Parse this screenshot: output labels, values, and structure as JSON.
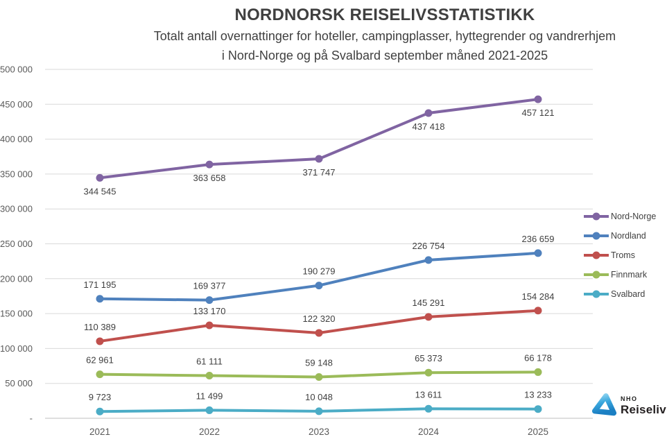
{
  "header": {
    "title": "NORDNORSK REISELIVSSTATISTIKK",
    "subtitle_line1": "Totalt antall overnattinger for hoteller, campingplasser, hyttegrender og vandrerhjem",
    "subtitle_line2": "i Nord-Norge og på Svalbard september måned 2021-2025"
  },
  "chart_data": {
    "type": "line",
    "title": "NORDNORSK REISELIVSSTATISTIKK",
    "xlabel": "",
    "ylabel": "",
    "categories": [
      "2021",
      "2022",
      "2023",
      "2024",
      "2025"
    ],
    "series": [
      {
        "name": "Nord-Norge",
        "color": "#8064A2",
        "values": [
          344545,
          363658,
          371747,
          437418,
          457121
        ],
        "labels": [
          "344 545",
          "363 658",
          "371 747",
          "437 418",
          "457 121"
        ],
        "label_position": "below"
      },
      {
        "name": "Nordland",
        "color": "#4F81BD",
        "values": [
          171195,
          169377,
          190279,
          226754,
          236659
        ],
        "labels": [
          "171 195",
          "169 377",
          "190 279",
          "226 754",
          "236 659"
        ],
        "label_position": "above"
      },
      {
        "name": "Troms",
        "color": "#C0504D",
        "values": [
          110389,
          133170,
          122320,
          145291,
          154284
        ],
        "labels": [
          "110 389",
          "133 170",
          "122 320",
          "145 291",
          "154 284"
        ],
        "label_position": "above"
      },
      {
        "name": "Finnmark",
        "color": "#9BBB59",
        "values": [
          62961,
          61111,
          59148,
          65373,
          66178
        ],
        "labels": [
          "62 961",
          "61 111",
          "59 148",
          "65 373",
          "66 178"
        ],
        "label_position": "above"
      },
      {
        "name": "Svalbard",
        "color": "#4BACC6",
        "values": [
          9723,
          11499,
          10048,
          13611,
          13233
        ],
        "labels": [
          "9 723",
          "11 499",
          "10 048",
          "13 611",
          "13 233"
        ],
        "label_position": "above"
      }
    ],
    "ylim": [
      0,
      500000
    ],
    "ytick_step": 50000,
    "ytick_labels_top_to_bottom": [
      "500 000",
      "450 000",
      "400 000",
      "350 000",
      "300 000",
      "250 000",
      "200 000",
      "150 000",
      "100 000",
      "50 000",
      "-"
    ],
    "grid": true,
    "legend_position": "right"
  },
  "colors": {
    "grid": "#d9d9d9",
    "axis_line": "#bfbfbf",
    "axis_text": "#595959",
    "data_label_text": "#404040"
  },
  "logo": {
    "org": "NHO",
    "brand": "Reiseliv"
  }
}
